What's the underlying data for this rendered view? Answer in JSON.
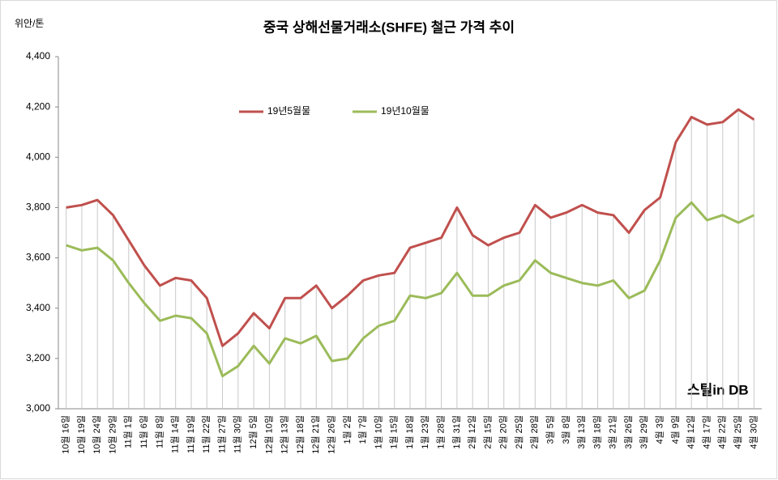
{
  "chart_data": {
    "type": "line",
    "title": "중국 상해선물거래소(SHFE) 철근 가격 추이",
    "y_label": "위안/톤",
    "watermark": "스틸in DB",
    "categories": [
      "10월 16일",
      "10월 19일",
      "10월 24일",
      "10월 29일",
      "11월 1일",
      "11월 6일",
      "11월 8일",
      "11월 14일",
      "11월 19일",
      "11월 22일",
      "11월 27일",
      "11월 30일",
      "12월 5일",
      "12월 10일",
      "12월 13일",
      "12월 18일",
      "12월 21일",
      "12월 26일",
      "1월 2일",
      "1월 7일",
      "1월 10일",
      "1월 15일",
      "1월 18일",
      "1월 23일",
      "1월 28일",
      "1월 31일",
      "2월 12일",
      "2월 15일",
      "2월 20일",
      "2월 25일",
      "2월 28일",
      "3월 5일",
      "3월 8일",
      "3월 13일",
      "3월 18일",
      "3월 21일",
      "3월 26일",
      "3월 29일",
      "4월 3일",
      "4월 9일",
      "4월 12일",
      "4월 17일",
      "4월 22일",
      "4월 25일",
      "4월 30일"
    ],
    "series": [
      {
        "name": "19년5월물",
        "color": "#c0504d",
        "values": [
          3800,
          3810,
          3830,
          3770,
          3670,
          3570,
          3490,
          3520,
          3510,
          3440,
          3250,
          3300,
          3380,
          3320,
          3440,
          3440,
          3490,
          3400,
          3450,
          3510,
          3530,
          3540,
          3640,
          3660,
          3680,
          3800,
          3690,
          3650,
          3680,
          3700,
          3810,
          3760,
          3780,
          3810,
          3780,
          3770,
          3700,
          3790,
          3840,
          4060,
          4160,
          4130,
          4140,
          4190,
          4150
        ]
      },
      {
        "name": "19년10월물",
        "color": "#9bbb59",
        "values": [
          3650,
          3630,
          3640,
          3590,
          3500,
          3420,
          3350,
          3370,
          3360,
          3300,
          3130,
          3170,
          3250,
          3180,
          3280,
          3260,
          3290,
          3190,
          3200,
          3280,
          3330,
          3350,
          3450,
          3440,
          3460,
          3540,
          3450,
          3450,
          3490,
          3510,
          3590,
          3540,
          3520,
          3500,
          3490,
          3510,
          3440,
          3470,
          3590,
          3760,
          3820,
          3750,
          3770,
          3740,
          3770
        ]
      }
    ],
    "ylim": [
      3000,
      4400
    ],
    "yticks": [
      {
        "value": 3000,
        "label": "3,000"
      },
      {
        "value": 3200,
        "label": "3,200"
      },
      {
        "value": 3400,
        "label": "3,400"
      },
      {
        "value": 3600,
        "label": "3,600"
      },
      {
        "value": 3800,
        "label": "3,800"
      },
      {
        "value": 4000,
        "label": "4,000"
      },
      {
        "value": 4200,
        "label": "4,200"
      },
      {
        "value": 4400,
        "label": "4,400"
      }
    ],
    "drop_lines": true
  }
}
